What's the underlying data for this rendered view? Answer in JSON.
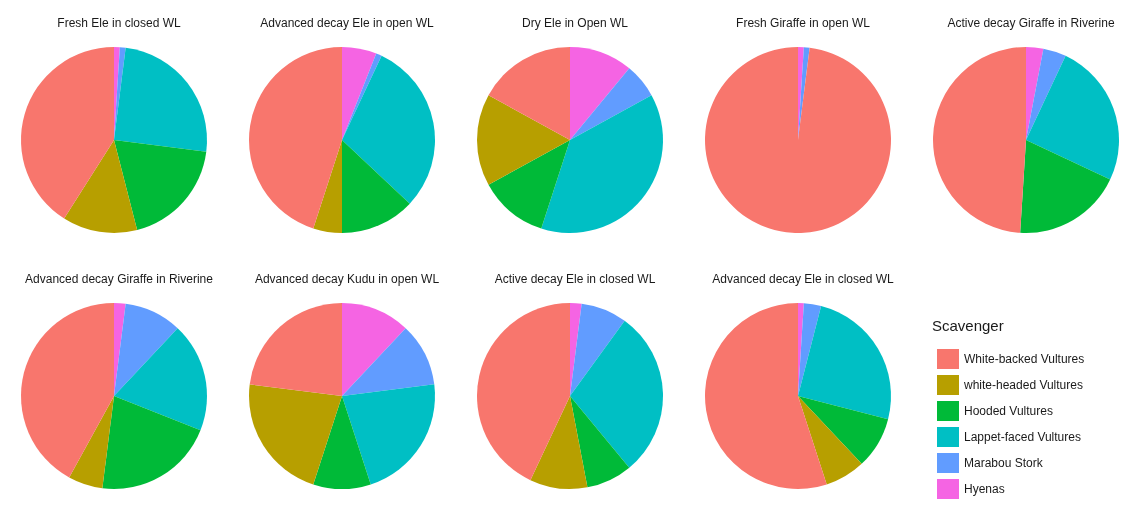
{
  "chart_data": [
    {
      "type": "pie",
      "title": "Fresh Ele in closed WL",
      "categories": [
        null,
        null,
        null,
        null,
        null,
        null
      ],
      "values": [
        1,
        1,
        25,
        19,
        13,
        41
      ],
      "colors": [
        "#f564e3",
        "#619cff",
        "#00bfc4",
        "#00ba38",
        "#b79f00",
        "#f8766d"
      ]
    },
    {
      "type": "pie",
      "title": "Advanced decay Ele in open WL",
      "categories": [
        null,
        null,
        null,
        null,
        null,
        null
      ],
      "values": [
        6,
        1,
        30,
        13,
        5,
        45
      ],
      "colors": [
        "#f564e3",
        "#619cff",
        "#00bfc4",
        "#00ba38",
        "#b79f00",
        "#f8766d"
      ]
    },
    {
      "type": "pie",
      "title": "Dry Ele in Open WL",
      "categories": [
        null,
        null,
        null,
        null,
        null,
        null
      ],
      "values": [
        11,
        6,
        38,
        12,
        16,
        17
      ],
      "colors": [
        "#f564e3",
        "#619cff",
        "#00bfc4",
        "#00ba38",
        "#b79f00",
        "#f8766d"
      ]
    },
    {
      "type": "pie",
      "title": "Fresh Giraffe in open WL",
      "categories": [
        null,
        null,
        null,
        null,
        null,
        null
      ],
      "values": [
        1,
        1,
        0,
        0,
        0,
        98
      ],
      "colors": [
        "#f564e3",
        "#619cff",
        "#00bfc4",
        "#00ba38",
        "#b79f00",
        "#f8766d"
      ]
    },
    {
      "type": "pie",
      "title": "Active decay Giraffe in Riverine",
      "categories": [
        null,
        null,
        null,
        null,
        null,
        null
      ],
      "values": [
        3,
        4,
        25,
        19,
        0,
        49
      ],
      "colors": [
        "#f564e3",
        "#619cff",
        "#00bfc4",
        "#00ba38",
        "#b79f00",
        "#f8766d"
      ]
    },
    {
      "type": "pie",
      "title": "Advanced decay Giraffe in Riverine",
      "categories": [
        null,
        null,
        null,
        null,
        null,
        null
      ],
      "values": [
        2,
        10,
        19,
        21,
        6,
        42
      ],
      "colors": [
        "#f564e3",
        "#619cff",
        "#00bfc4",
        "#00ba38",
        "#b79f00",
        "#f8766d"
      ]
    },
    {
      "type": "pie",
      "title": "Advanced decay Kudu in open WL",
      "categories": [
        null,
        null,
        null,
        null,
        null,
        null
      ],
      "values": [
        12,
        11,
        22,
        10,
        22,
        23
      ],
      "colors": [
        "#f564e3",
        "#619cff",
        "#00bfc4",
        "#00ba38",
        "#b79f00",
        "#f8766d"
      ]
    },
    {
      "type": "pie",
      "title": "Active decay Ele in closed WL",
      "categories": [
        null,
        null,
        null,
        null,
        null,
        null
      ],
      "values": [
        2,
        8,
        29,
        8,
        10,
        43
      ],
      "colors": [
        "#f564e3",
        "#619cff",
        "#00bfc4",
        "#00ba38",
        "#b79f00",
        "#f8766d"
      ]
    },
    {
      "type": "pie",
      "title": "Advanced decay Ele in closed WL",
      "categories": [
        "Hyenas",
        "Marabou Stork",
        "Lappet-faced Vultures",
        "Hooded Vultures",
        "white-headed Vultures",
        "White-backed Vultures"
      ],
      "values": [
        1,
        3,
        25,
        9,
        7,
        55
      ],
      "colors": [
        "#f564e3",
        "#619cff",
        "#00bfc4",
        "#00ba38",
        "#b79f00",
        "#f8766d"
      ],
      "legend": "right",
      "legend_title": "Scavenger"
    }
  ]
}
